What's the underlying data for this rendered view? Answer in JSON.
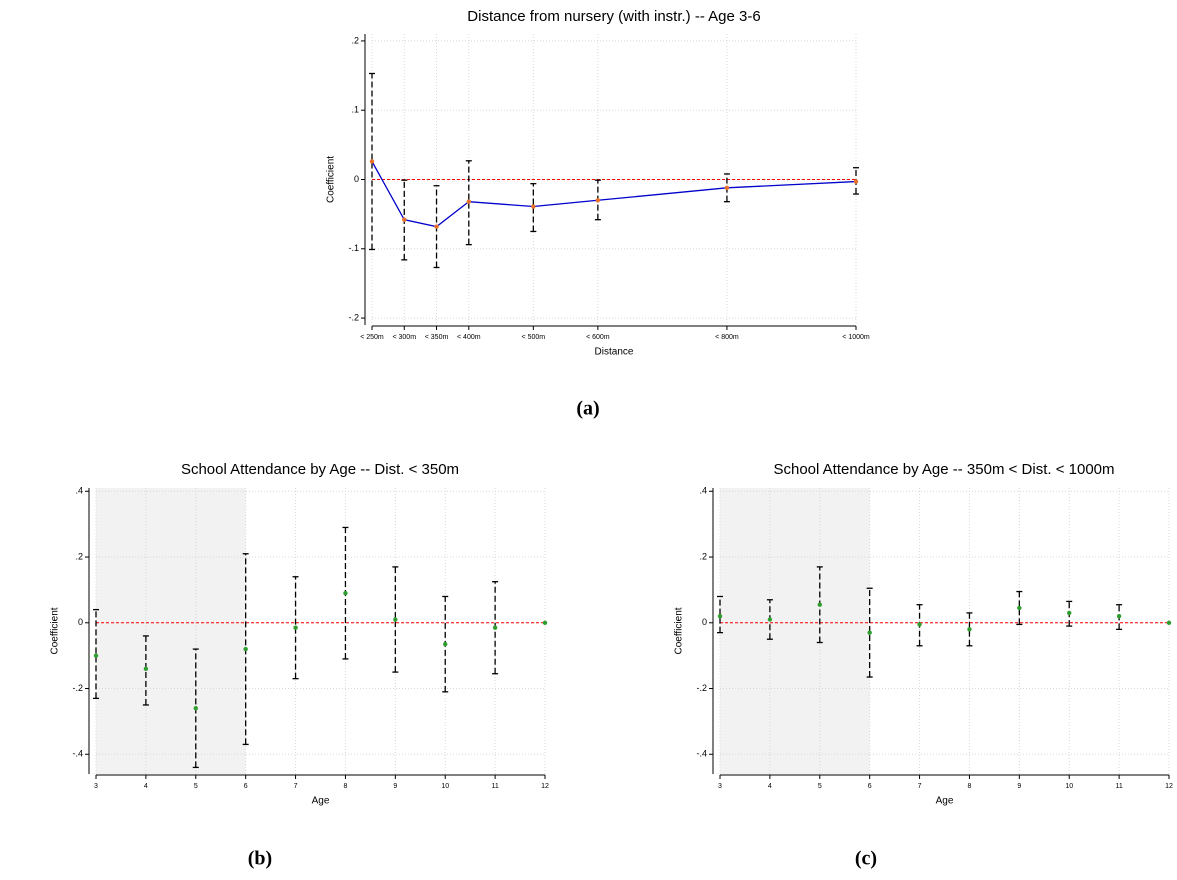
{
  "chart_data": [
    {
      "type": "line",
      "title": "Distance from nursery (with instr.) -- Age 3-6",
      "caption": "(a)",
      "x_label": "Distance",
      "y_label": "Coefficient",
      "x": [
        250,
        300,
        350,
        400,
        500,
        600,
        800,
        1000
      ],
      "series": [
        {
          "color": "#0000cc",
          "marker_color": "#e8702a",
          "values": [
            0.026,
            -0.058,
            -0.068,
            -0.032,
            -0.039,
            -0.03,
            -0.012,
            -0.003
          ],
          "ci_low": [
            -0.101,
            -0.116,
            -0.127,
            -0.094,
            -0.075,
            -0.058,
            -0.032,
            -0.021
          ],
          "ci_high": [
            0.153,
            -0.001,
            -0.009,
            0.027,
            -0.006,
            -0.001,
            0.008,
            0.017
          ]
        }
      ],
      "refline": 0,
      "refline_color": "#ff0000",
      "xlim": [
        250,
        1000
      ],
      "ylim": [
        -0.21,
        0.21
      ],
      "xticks": [
        {
          "value": 250,
          "label": "< 250m"
        },
        {
          "value": 300,
          "label": "< 300m"
        },
        {
          "value": 350,
          "label": "< 350m"
        },
        {
          "value": 400,
          "label": "< 400m"
        },
        {
          "value": 500,
          "label": "< 500m"
        },
        {
          "value": 600,
          "label": "< 600m"
        },
        {
          "value": 800,
          "label": "< 800m"
        },
        {
          "value": 1000,
          "label": "< 1000m"
        }
      ],
      "yticks": [
        {
          "value": -0.2,
          "label": "-.2"
        },
        {
          "value": -0.1,
          "label": "-.1"
        },
        0,
        {
          "value": 0.1,
          "label": ".1"
        },
        {
          "value": 0.2,
          "label": ".2"
        }
      ],
      "grid": true
    },
    {
      "type": "scatter",
      "title": "School Attendance by Age -- Dist. < 350m",
      "caption": "(b)",
      "x_label": "Age",
      "y_label": "Coefficient",
      "x": [
        3,
        4,
        5,
        6,
        7,
        8,
        9,
        10,
        11,
        12
      ],
      "series": [
        {
          "color": "#2e9e2e",
          "values": [
            -0.1,
            -0.14,
            -0.26,
            -0.08,
            -0.015,
            0.09,
            0.01,
            -0.065,
            -0.015,
            0
          ],
          "ci_low": [
            -0.23,
            -0.25,
            -0.44,
            -0.37,
            -0.17,
            -0.11,
            -0.15,
            -0.21,
            -0.155,
            null
          ],
          "ci_high": [
            0.04,
            -0.04,
            -0.08,
            0.21,
            0.14,
            0.29,
            0.17,
            0.08,
            0.125,
            null
          ]
        }
      ],
      "refline": 0,
      "refline_color": "#ff0000",
      "shade": [
        3,
        6
      ],
      "xlim": [
        3,
        12
      ],
      "ylim": [
        -0.46,
        0.41
      ],
      "xticks": [
        3,
        4,
        5,
        6,
        7,
        8,
        9,
        10,
        11,
        12
      ],
      "yticks": [
        {
          "value": -0.4,
          "label": "-.4"
        },
        {
          "value": -0.2,
          "label": "-.2"
        },
        0,
        {
          "value": 0.2,
          "label": ".2"
        },
        {
          "value": 0.4,
          "label": ".4"
        }
      ],
      "grid": true
    },
    {
      "type": "scatter",
      "title": "School Attendance by Age -- 350m < Dist. < 1000m",
      "caption": "(c)",
      "x_label": "Age",
      "y_label": "Coefficient",
      "x": [
        3,
        4,
        5,
        6,
        7,
        8,
        9,
        10,
        11,
        12
      ],
      "series": [
        {
          "color": "#2e9e2e",
          "values": [
            0.02,
            0.01,
            0.055,
            -0.03,
            -0.005,
            -0.02,
            0.045,
            0.03,
            0.02,
            0
          ],
          "ci_low": [
            -0.03,
            -0.05,
            -0.06,
            -0.165,
            -0.07,
            -0.07,
            -0.005,
            -0.01,
            -0.02,
            null
          ],
          "ci_high": [
            0.08,
            0.07,
            0.17,
            0.105,
            0.055,
            0.03,
            0.095,
            0.065,
            0.055,
            null
          ]
        }
      ],
      "refline": 0,
      "refline_color": "#ff0000",
      "shade": [
        3,
        6
      ],
      "xlim": [
        3,
        12
      ],
      "ylim": [
        -0.46,
        0.41
      ],
      "xticks": [
        3,
        4,
        5,
        6,
        7,
        8,
        9,
        10,
        11,
        12
      ],
      "yticks": [
        {
          "value": -0.4,
          "label": "-.4"
        },
        {
          "value": -0.2,
          "label": "-.2"
        },
        0,
        {
          "value": 0.2,
          "label": ".2"
        },
        {
          "value": 0.4,
          "label": ".4"
        }
      ],
      "grid": true
    }
  ]
}
